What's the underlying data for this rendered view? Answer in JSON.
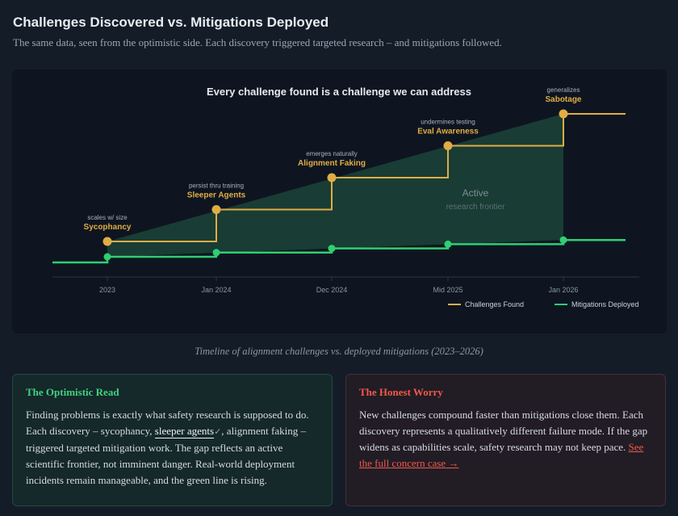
{
  "header": {
    "title": "Challenges Discovered vs. Mitigations Deployed",
    "subtitle": "The same data, seen from the optimistic side. Each discovery triggered targeted research – and mitigations followed."
  },
  "chart_data": {
    "type": "line",
    "title": "Every challenge found is a challenge we can address",
    "xlabel": "",
    "ylabel": "",
    "x": [
      "2023",
      "Jan 2024",
      "Dec 2024",
      "Mid 2025",
      "Jan 2026"
    ],
    "series": [
      {
        "name": "Challenges Found",
        "values": [
          1,
          2,
          3,
          4,
          5
        ],
        "color": "#e0ad45"
      },
      {
        "name": "Mitigations Deployed",
        "values": [
          0.6,
          0.7,
          0.8,
          0.9,
          1.0
        ],
        "color": "#2fcf72"
      }
    ],
    "point_labels": [
      {
        "sublabel": "scales w/ size",
        "label": "Sycophancy"
      },
      {
        "sublabel": "persist thru training",
        "label": "Sleeper Agents"
      },
      {
        "sublabel": "emerges naturally",
        "label": "Alignment Faking"
      },
      {
        "sublabel": "undermines testing",
        "label": "Eval Awareness"
      },
      {
        "sublabel": "generalizes",
        "label": "Sabotage"
      }
    ],
    "annotation": {
      "title": "Active",
      "subtitle": "research frontier"
    },
    "legend_position": "bottom-right",
    "grid": false,
    "colors": {
      "challenges": "#e0ad45",
      "mitigations": "#2fcf72",
      "gap_fill": "#1d4a3c"
    }
  },
  "caption": "Timeline of alignment challenges vs. deployed mitigations (2023–2026)",
  "optimistic": {
    "title": "The Optimistic Read",
    "text_before": "Finding problems is exactly what safety research is supposed to do. Each discovery – sycophancy, ",
    "link_text": "sleeper agents",
    "check": "✓",
    "text_after": ", alignment faking – triggered targeted mitigation work. The gap reflects an active scientific frontier, not imminent danger. Real-world deployment incidents remain manageable, and the green line is rising."
  },
  "worry": {
    "title": "The Honest Worry",
    "text": "New challenges compound faster than mitigations close them. Each discovery represents a qualitatively different failure mode. If the gap widens as capabilities scale, safety research may not keep pace. ",
    "link_text": "See the full concern case →"
  }
}
